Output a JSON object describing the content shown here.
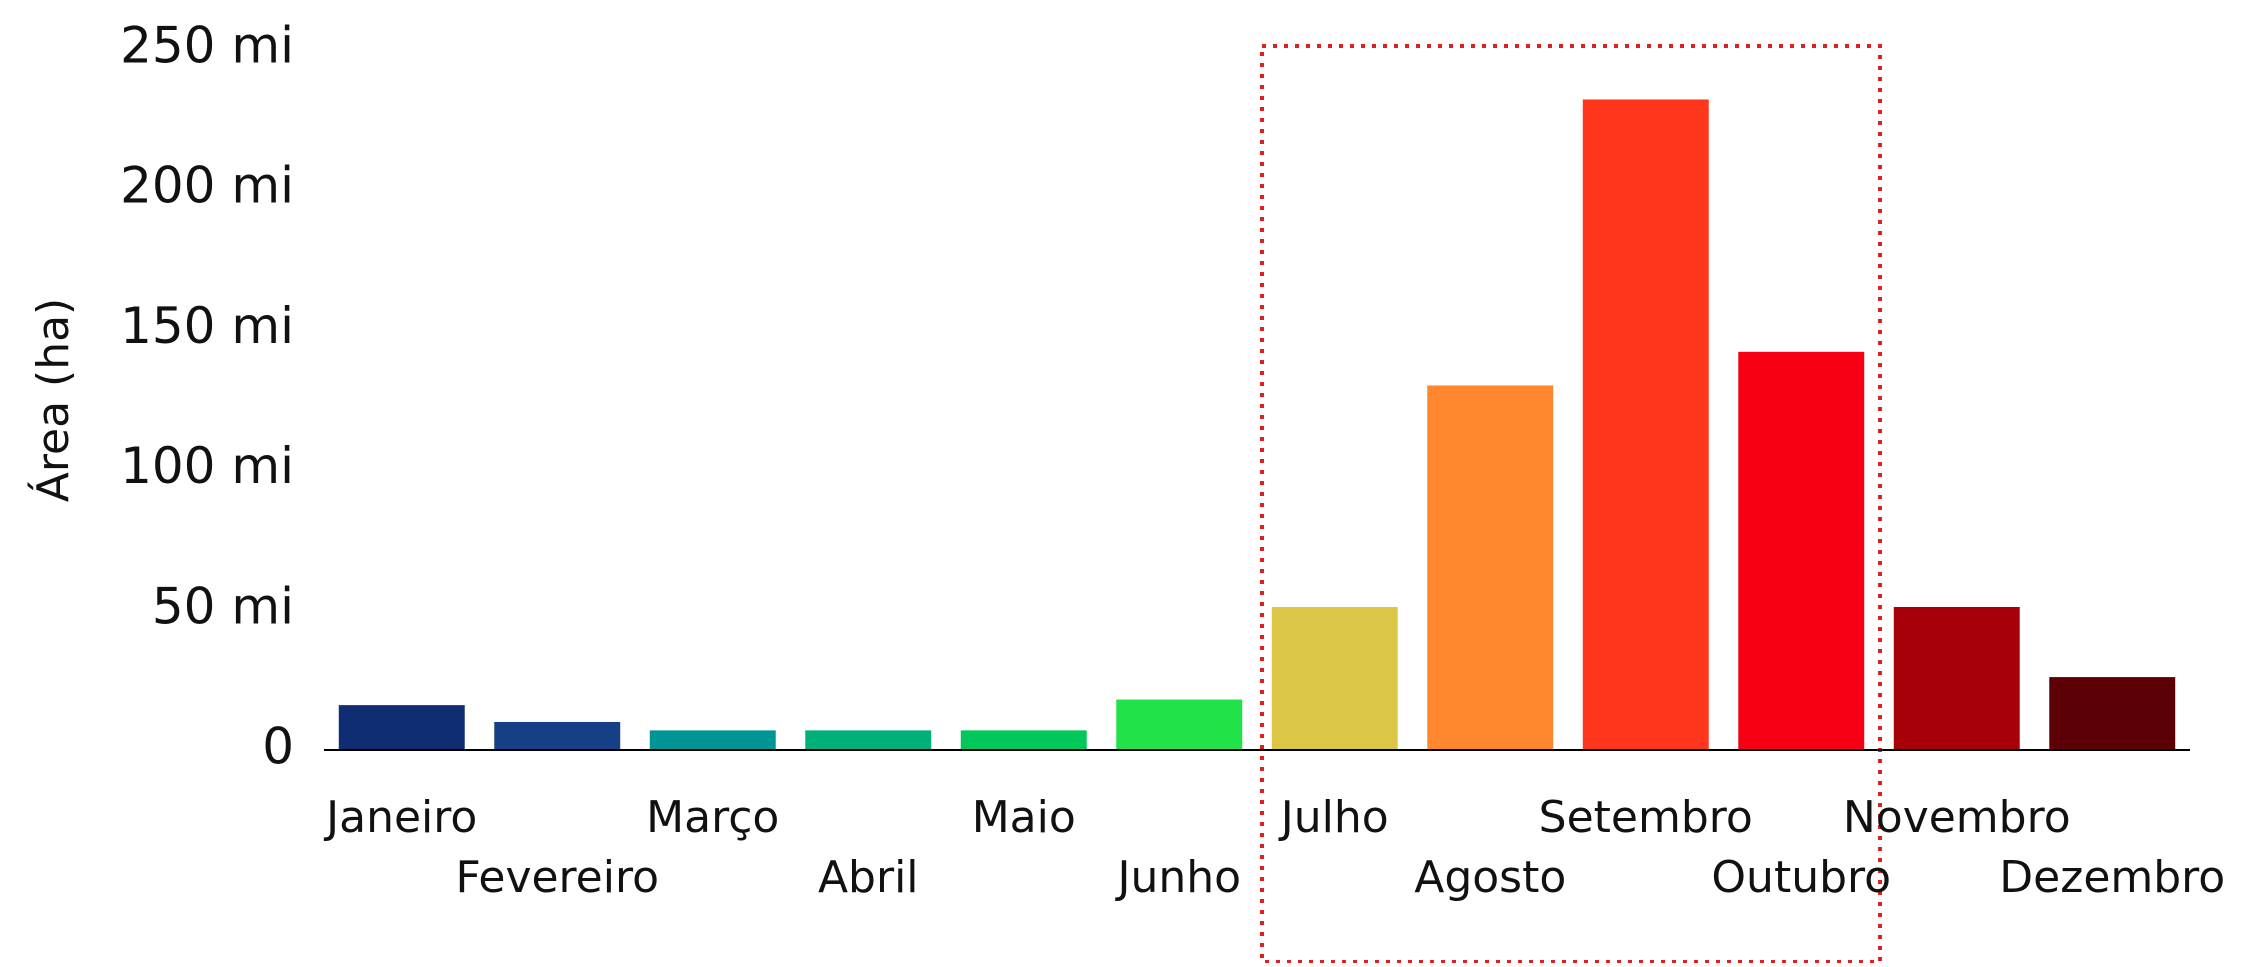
{
  "chart_data": {
    "type": "bar",
    "y_label": "Área (ha)",
    "categories": [
      "Janeiro",
      "Fevereiro",
      "Março",
      "Abril",
      "Maio",
      "Junho",
      "Julho",
      "Agosto",
      "Setembro",
      "Outubro",
      "Novembro",
      "Dezembro"
    ],
    "values": [
      16000,
      10000,
      7000,
      7000,
      7000,
      18000,
      51000,
      130000,
      232000,
      142000,
      51000,
      26000
    ],
    "colors": [
      "#0f2d73",
      "#173f86",
      "#009494",
      "#00b07a",
      "#00c85a",
      "#22e24a",
      "#dcc645",
      "#ff8730",
      "#ff351c",
      "#f80013",
      "#a80008",
      "#5c0005"
    ],
    "ylim": [
      0,
      250000
    ],
    "yticks": [
      0,
      {
        "value": 50000,
        "label": "50 mi"
      },
      {
        "value": 100000,
        "label": "100 mi"
      },
      {
        "value": 150000,
        "label": "150 mi"
      },
      {
        "value": 200000,
        "label": "200 mi"
      },
      {
        "value": 250000,
        "label": "250 mi"
      }
    ],
    "grid": false
  }
}
